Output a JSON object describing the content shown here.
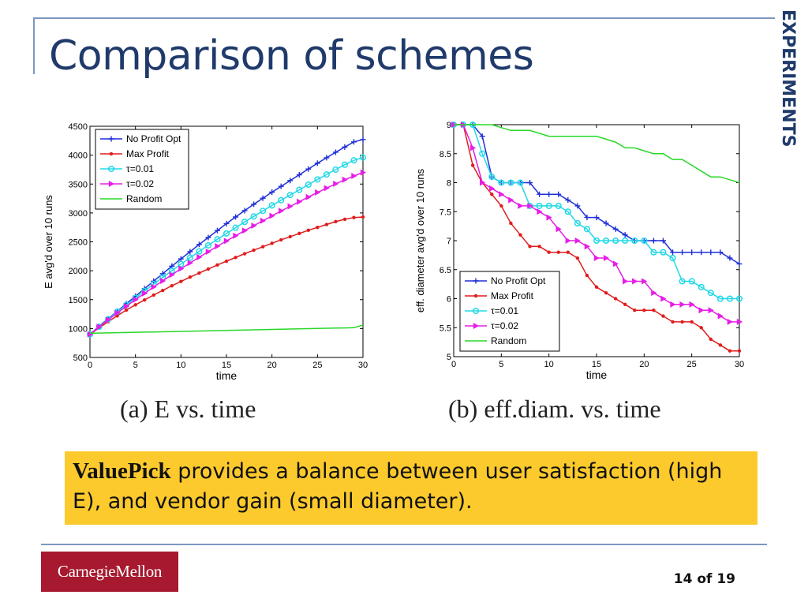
{
  "slide": {
    "title": "Comparison of schemes",
    "section": "EXPERIMENTS",
    "caption_a": "(a) E vs. time",
    "caption_b": "(b) eff.diam. vs. time",
    "callout_emphasis": "ValuePick",
    "callout_text": " provides a balance between user satisfaction (high E), and vendor gain (small diameter).",
    "logo_text": "CarnegieMellon",
    "page_number": "14 of 19"
  },
  "colors": {
    "title": "#1f3a6b",
    "rule": "#7d97c2",
    "callout_bg": "#fcca2d",
    "logo_bg": "#a6192e"
  },
  "chart_data": [
    {
      "type": "line",
      "title": "",
      "xlabel": "time",
      "ylabel": "E avg'd over 10 runs",
      "xlim": [
        0,
        30
      ],
      "ylim": [
        500,
        4500
      ],
      "xticks": [
        0,
        5,
        10,
        15,
        20,
        25,
        30
      ],
      "yticks": [
        500,
        1000,
        1500,
        2000,
        2500,
        3000,
        3500,
        4000,
        4500
      ],
      "legend": "top-left",
      "grid": false,
      "series": [
        {
          "name": "No Profit Opt",
          "color": "#1f2fd6",
          "marker": "plus",
          "x": [
            0,
            1,
            2,
            3,
            4,
            5,
            6,
            7,
            8,
            9,
            10,
            11,
            12,
            13,
            14,
            15,
            16,
            17,
            18,
            19,
            20,
            21,
            22,
            23,
            24,
            25,
            26,
            27,
            28,
            29,
            30
          ],
          "y": [
            900,
            1040,
            1170,
            1300,
            1430,
            1560,
            1690,
            1820,
            1950,
            2080,
            2205,
            2330,
            2455,
            2575,
            2695,
            2815,
            2930,
            3040,
            3150,
            3255,
            3360,
            3460,
            3560,
            3660,
            3760,
            3860,
            3955,
            4050,
            4140,
            4230,
            4270
          ]
        },
        {
          "name": "Max Profit",
          "color": "#e01c1c",
          "marker": "dot",
          "x": [
            0,
            1,
            2,
            3,
            4,
            5,
            6,
            7,
            8,
            9,
            10,
            11,
            12,
            13,
            14,
            15,
            16,
            17,
            18,
            19,
            20,
            21,
            22,
            23,
            24,
            25,
            26,
            27,
            28,
            29,
            30
          ],
          "y": [
            900,
            1010,
            1120,
            1220,
            1320,
            1410,
            1495,
            1580,
            1660,
            1740,
            1815,
            1890,
            1960,
            2030,
            2100,
            2165,
            2230,
            2295,
            2355,
            2415,
            2475,
            2535,
            2590,
            2645,
            2700,
            2750,
            2800,
            2850,
            2890,
            2920,
            2930
          ]
        },
        {
          "name": "τ=0.01",
          "color": "#22d8e8",
          "marker": "circle",
          "x": [
            0,
            1,
            2,
            3,
            4,
            5,
            6,
            7,
            8,
            9,
            10,
            11,
            12,
            13,
            14,
            15,
            16,
            17,
            18,
            19,
            20,
            21,
            22,
            23,
            24,
            25,
            26,
            27,
            28,
            29,
            30
          ],
          "y": [
            900,
            1030,
            1160,
            1290,
            1410,
            1530,
            1650,
            1770,
            1885,
            2000,
            2115,
            2225,
            2335,
            2440,
            2545,
            2645,
            2745,
            2845,
            2940,
            3035,
            3130,
            3220,
            3310,
            3400,
            3490,
            3580,
            3665,
            3750,
            3835,
            3910,
            3960
          ]
        },
        {
          "name": "τ=0.02",
          "color": "#e61ee6",
          "marker": "triangle-right",
          "x": [
            0,
            1,
            2,
            3,
            4,
            5,
            6,
            7,
            8,
            9,
            10,
            11,
            12,
            13,
            14,
            15,
            16,
            17,
            18,
            19,
            20,
            21,
            22,
            23,
            24,
            25,
            26,
            27,
            28,
            29,
            30
          ],
          "y": [
            900,
            1030,
            1150,
            1270,
            1385,
            1500,
            1610,
            1720,
            1825,
            1930,
            2035,
            2135,
            2235,
            2330,
            2425,
            2515,
            2605,
            2695,
            2780,
            2865,
            2950,
            3035,
            3115,
            3195,
            3275,
            3355,
            3430,
            3505,
            3575,
            3640,
            3700
          ]
        },
        {
          "name": "Random",
          "color": "#27d827",
          "marker": "none",
          "x": [
            0,
            1,
            2,
            3,
            4,
            5,
            6,
            7,
            8,
            9,
            10,
            11,
            12,
            13,
            14,
            15,
            16,
            17,
            18,
            19,
            20,
            21,
            22,
            23,
            24,
            25,
            26,
            27,
            28,
            29,
            30
          ],
          "y": [
            920,
            922,
            925,
            928,
            931,
            935,
            938,
            941,
            944,
            948,
            951,
            955,
            958,
            961,
            964,
            968,
            971,
            975,
            978,
            981,
            985,
            988,
            991,
            995,
            998,
            1001,
            1005,
            1008,
            1011,
            1015,
            1060
          ]
        }
      ]
    },
    {
      "type": "line",
      "title": "",
      "xlabel": "time",
      "ylabel": "eff. diameter avg'd over 10 runs",
      "xlim": [
        0,
        30
      ],
      "ylim": [
        5,
        9
      ],
      "xticks": [
        0,
        5,
        10,
        15,
        20,
        25,
        30
      ],
      "yticks": [
        5,
        5.5,
        6,
        6.5,
        7,
        7.5,
        8,
        8.5,
        9
      ],
      "legend": "bottom-left",
      "grid": false,
      "series": [
        {
          "name": "No Profit Opt",
          "color": "#1f2fd6",
          "marker": "plus",
          "x": [
            0,
            1,
            2,
            3,
            4,
            5,
            6,
            7,
            8,
            9,
            10,
            11,
            12,
            13,
            14,
            15,
            16,
            17,
            18,
            19,
            20,
            21,
            22,
            23,
            24,
            25,
            26,
            27,
            28,
            29,
            30
          ],
          "y": [
            9,
            9,
            9,
            8.8,
            8.1,
            8,
            8,
            8,
            8,
            7.8,
            7.8,
            7.8,
            7.7,
            7.6,
            7.4,
            7.4,
            7.3,
            7.2,
            7.1,
            7,
            7,
            7,
            7,
            6.8,
            6.8,
            6.8,
            6.8,
            6.8,
            6.8,
            6.7,
            6.6
          ]
        },
        {
          "name": "Max Profit",
          "color": "#e01c1c",
          "marker": "dot",
          "x": [
            0,
            1,
            2,
            3,
            4,
            5,
            6,
            7,
            8,
            9,
            10,
            11,
            12,
            13,
            14,
            15,
            16,
            17,
            18,
            19,
            20,
            21,
            22,
            23,
            24,
            25,
            26,
            27,
            28,
            29,
            30
          ],
          "y": [
            9,
            9,
            8.3,
            8,
            7.8,
            7.6,
            7.3,
            7.1,
            6.9,
            6.9,
            6.8,
            6.8,
            6.8,
            6.7,
            6.4,
            6.2,
            6.1,
            6,
            5.9,
            5.8,
            5.8,
            5.8,
            5.7,
            5.6,
            5.6,
            5.6,
            5.5,
            5.3,
            5.2,
            5.1,
            5.1
          ]
        },
        {
          "name": "τ=0.01",
          "color": "#22d8e8",
          "marker": "circle",
          "x": [
            0,
            1,
            2,
            3,
            4,
            5,
            6,
            7,
            8,
            9,
            10,
            11,
            12,
            13,
            14,
            15,
            16,
            17,
            18,
            19,
            20,
            21,
            22,
            23,
            24,
            25,
            26,
            27,
            28,
            29,
            30
          ],
          "y": [
            9,
            9,
            9,
            8.5,
            8.1,
            8,
            8,
            8,
            7.6,
            7.6,
            7.6,
            7.6,
            7.5,
            7.3,
            7.2,
            7,
            7,
            7,
            7,
            7,
            7,
            6.8,
            6.8,
            6.7,
            6.3,
            6.3,
            6.2,
            6.1,
            6,
            6,
            6
          ]
        },
        {
          "name": "τ=0.02",
          "color": "#e61ee6",
          "marker": "triangle-right",
          "x": [
            0,
            1,
            2,
            3,
            4,
            5,
            6,
            7,
            8,
            9,
            10,
            11,
            12,
            13,
            14,
            15,
            16,
            17,
            18,
            19,
            20,
            21,
            22,
            23,
            24,
            25,
            26,
            27,
            28,
            29,
            30
          ],
          "y": [
            9,
            9,
            8.6,
            8,
            7.9,
            7.8,
            7.7,
            7.6,
            7.6,
            7.5,
            7.4,
            7.2,
            7,
            7,
            6.9,
            6.7,
            6.7,
            6.6,
            6.3,
            6.3,
            6.3,
            6.1,
            6,
            5.9,
            5.9,
            5.9,
            5.8,
            5.8,
            5.7,
            5.6,
            5.6
          ]
        },
        {
          "name": "Random",
          "color": "#27d827",
          "marker": "none",
          "x": [
            0,
            1,
            2,
            3,
            4,
            5,
            6,
            7,
            8,
            9,
            10,
            11,
            12,
            13,
            14,
            15,
            16,
            17,
            18,
            19,
            20,
            21,
            22,
            23,
            24,
            25,
            26,
            27,
            28,
            29,
            30
          ],
          "y": [
            9,
            9,
            9,
            9,
            9,
            8.95,
            8.9,
            8.9,
            8.9,
            8.85,
            8.8,
            8.8,
            8.8,
            8.8,
            8.8,
            8.8,
            8.75,
            8.7,
            8.6,
            8.6,
            8.55,
            8.5,
            8.5,
            8.4,
            8.4,
            8.3,
            8.2,
            8.1,
            8.1,
            8.05,
            8
          ]
        }
      ]
    }
  ]
}
